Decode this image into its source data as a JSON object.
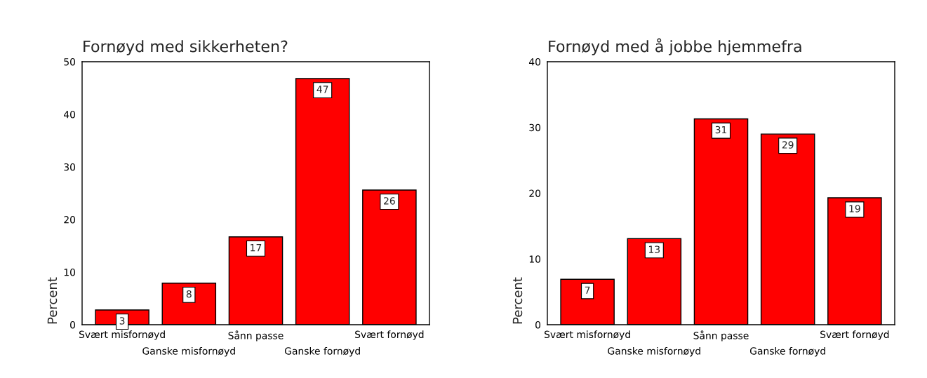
{
  "chart_data": [
    {
      "type": "bar",
      "title": "Fornøyd med sikkerheten?",
      "ylabel": "Percent",
      "categories": [
        "Svært misfornøyd",
        "Ganske misfornøyd",
        "Sånn passe",
        "Ganske fornøyd",
        "Svært fornøyd"
      ],
      "values": [
        2.8,
        7.9,
        16.7,
        46.8,
        25.6
      ],
      "value_labels": [
        "3",
        "8",
        "17",
        "47",
        "26"
      ],
      "color": "#ff0000",
      "ylim": [
        0,
        50
      ],
      "yticks": [
        0,
        10,
        20,
        30,
        40,
        50
      ],
      "grid": false,
      "legend": false
    },
    {
      "type": "bar",
      "title": "Fornøyd med å jobbe hjemmefra",
      "ylabel": "Percent",
      "categories": [
        "Svært misfornøyd",
        "Ganske misfornøyd",
        "Sånn passe",
        "Ganske fornøyd",
        "Svært fornøyd"
      ],
      "values": [
        6.9,
        13.1,
        31.3,
        29.0,
        19.3
      ],
      "value_labels": [
        "7",
        "13",
        "31",
        "29",
        "19"
      ],
      "color": "#ff0000",
      "ylim": [
        0,
        40
      ],
      "yticks": [
        0,
        10,
        20,
        30,
        40
      ],
      "grid": false,
      "legend": false
    }
  ]
}
